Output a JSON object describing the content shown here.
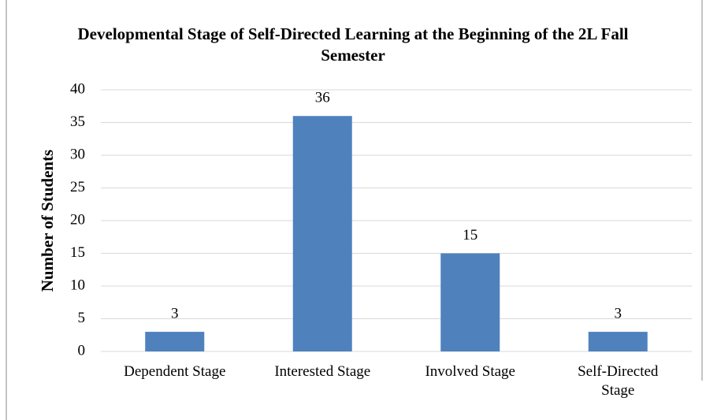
{
  "chart_data": {
    "type": "bar",
    "title": "Developmental Stage of Self-Directed Learning at the Beginning of the 2L Fall Semester",
    "ylabel": "Number of Students",
    "categories": [
      "Dependent Stage",
      "Interested Stage",
      "Involved Stage",
      "Self-Directed Stage"
    ],
    "values": [
      3,
      36,
      15,
      3
    ],
    "color": "#4f81bd",
    "ylim": [
      0,
      40
    ],
    "yticks": [
      0,
      5,
      10,
      15,
      20,
      25,
      30,
      35,
      40
    ],
    "grid": true,
    "data_labels": true
  }
}
